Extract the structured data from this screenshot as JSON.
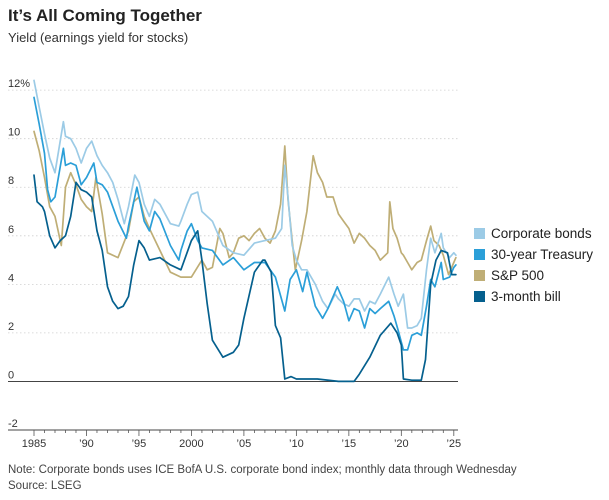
{
  "chart_data": {
    "type": "line",
    "title": "It’s All Coming Together",
    "subtitle": "Yield (earnings yield for stocks)",
    "xlabel": "",
    "ylabel": "",
    "xlim": [
      1985,
      2025.4
    ],
    "ylim": [
      -2,
      12.5
    ],
    "y_ticks": [
      {
        "value": 12,
        "label": "12%"
      },
      {
        "value": 10,
        "label": "10"
      },
      {
        "value": 8,
        "label": "8"
      },
      {
        "value": 6,
        "label": "6"
      },
      {
        "value": 4,
        "label": "4"
      },
      {
        "value": 2,
        "label": "2"
      },
      {
        "value": 0,
        "label": "0"
      },
      {
        "value": -2,
        "label": "-2"
      }
    ],
    "x_ticks": [
      {
        "value": 1985,
        "label": "1985"
      },
      {
        "value": 1990,
        "label": "’90"
      },
      {
        "value": 1995,
        "label": "’95"
      },
      {
        "value": 2000,
        "label": "2000"
      },
      {
        "value": 2005,
        "label": "’05"
      },
      {
        "value": 2010,
        "label": "’10"
      },
      {
        "value": 2015,
        "label": "’15"
      },
      {
        "value": 2020,
        "label": "’20"
      },
      {
        "value": 2025,
        "label": "’25"
      }
    ],
    "legend_position": "right",
    "series": [
      {
        "name": "S&P 500",
        "color": "#bfae76",
        "points": [
          [
            1985,
            10.3
          ],
          [
            1985.5,
            9.5
          ],
          [
            1986,
            8.4
          ],
          [
            1986.5,
            7.2
          ],
          [
            1987,
            6.8
          ],
          [
            1987.6,
            5.6
          ],
          [
            1988,
            8.0
          ],
          [
            1988.5,
            8.6
          ],
          [
            1989,
            8.1
          ],
          [
            1989.5,
            7.5
          ],
          [
            1990,
            7.2
          ],
          [
            1990.5,
            7.0
          ],
          [
            1990.9,
            8.4
          ],
          [
            1991.5,
            6.9
          ],
          [
            1992,
            5.3
          ],
          [
            1993,
            5.1
          ],
          [
            1994,
            6.2
          ],
          [
            1994.5,
            7.4
          ],
          [
            1995,
            7.6
          ],
          [
            1995.5,
            6.8
          ],
          [
            1996,
            6.3
          ],
          [
            1997,
            5.4
          ],
          [
            1998,
            4.5
          ],
          [
            1999,
            4.3
          ],
          [
            2000,
            4.3
          ],
          [
            2001,
            5.0
          ],
          [
            2001.5,
            4.6
          ],
          [
            2002,
            4.7
          ],
          [
            2002.7,
            6.3
          ],
          [
            2003,
            6.1
          ],
          [
            2003.6,
            5.1
          ],
          [
            2004,
            5.3
          ],
          [
            2004.5,
            5.9
          ],
          [
            2005,
            6.0
          ],
          [
            2005.5,
            5.8
          ],
          [
            2006,
            6.1
          ],
          [
            2006.5,
            6.3
          ],
          [
            2007,
            5.9
          ],
          [
            2007.5,
            5.7
          ],
          [
            2008,
            6.2
          ],
          [
            2008.5,
            7.3
          ],
          [
            2008.9,
            9.7
          ],
          [
            2009.2,
            7.5
          ],
          [
            2009.6,
            5.8
          ],
          [
            2009.9,
            4.6
          ],
          [
            2010.5,
            5.8
          ],
          [
            2011,
            7.0
          ],
          [
            2011.6,
            9.3
          ],
          [
            2012,
            8.6
          ],
          [
            2012.5,
            8.2
          ],
          [
            2012.9,
            7.6
          ],
          [
            2013.5,
            7.6
          ],
          [
            2014,
            6.9
          ],
          [
            2014.5,
            6.6
          ],
          [
            2015,
            6.3
          ],
          [
            2015.5,
            5.7
          ],
          [
            2016,
            6.1
          ],
          [
            2016.5,
            5.9
          ],
          [
            2017,
            5.6
          ],
          [
            2017.5,
            5.4
          ],
          [
            2018,
            5.0
          ],
          [
            2018.7,
            5.3
          ],
          [
            2018.9,
            7.4
          ],
          [
            2019.2,
            6.3
          ],
          [
            2019.6,
            5.9
          ],
          [
            2020,
            5.3
          ],
          [
            2020.2,
            5.2
          ],
          [
            2020.6,
            4.9
          ],
          [
            2021,
            4.6
          ],
          [
            2021.5,
            4.9
          ],
          [
            2021.9,
            5.0
          ],
          [
            2022.4,
            5.8
          ],
          [
            2022.8,
            6.4
          ],
          [
            2023.1,
            5.8
          ],
          [
            2023.6,
            5.6
          ],
          [
            2024,
            5.2
          ],
          [
            2024.5,
            4.4
          ],
          [
            2025,
            4.9
          ],
          [
            2025.2,
            5.1
          ]
        ]
      },
      {
        "name": "Corporate bonds",
        "color": "#9ccbe6",
        "points": [
          [
            1985,
            12.4
          ],
          [
            1985.5,
            11.3
          ],
          [
            1986,
            10.2
          ],
          [
            1986.5,
            9.2
          ],
          [
            1987,
            8.6
          ],
          [
            1987.8,
            10.7
          ],
          [
            1988,
            10.1
          ],
          [
            1988.5,
            10.0
          ],
          [
            1989,
            9.6
          ],
          [
            1989.5,
            9.0
          ],
          [
            1990,
            9.6
          ],
          [
            1990.5,
            9.9
          ],
          [
            1991,
            9.3
          ],
          [
            1991.5,
            8.9
          ],
          [
            1992,
            8.6
          ],
          [
            1992.5,
            8.2
          ],
          [
            1993,
            7.5
          ],
          [
            1993.6,
            6.5
          ],
          [
            1994,
            7.2
          ],
          [
            1994.6,
            8.5
          ],
          [
            1995,
            8.2
          ],
          [
            1995.5,
            7.3
          ],
          [
            1996,
            6.8
          ],
          [
            1996.5,
            7.5
          ],
          [
            1997,
            7.3
          ],
          [
            1998,
            6.5
          ],
          [
            1998.8,
            6.4
          ],
          [
            1999,
            6.6
          ],
          [
            1999.6,
            7.3
          ],
          [
            2000,
            7.7
          ],
          [
            2000.6,
            7.8
          ],
          [
            2001,
            7.0
          ],
          [
            2002,
            6.6
          ],
          [
            2003,
            5.6
          ],
          [
            2004,
            5.3
          ],
          [
            2005,
            5.2
          ],
          [
            2006,
            5.7
          ],
          [
            2007,
            5.8
          ],
          [
            2008,
            5.9
          ],
          [
            2008.6,
            6.3
          ],
          [
            2008.9,
            8.9
          ],
          [
            2009.2,
            7.6
          ],
          [
            2009.6,
            5.6
          ],
          [
            2010,
            5.0
          ],
          [
            2010.5,
            4.6
          ],
          [
            2011,
            4.6
          ],
          [
            2011.8,
            4.0
          ],
          [
            2012.5,
            3.3
          ],
          [
            2013,
            3.0
          ],
          [
            2013.7,
            3.6
          ],
          [
            2014,
            3.4
          ],
          [
            2014.5,
            3.2
          ],
          [
            2015,
            3.1
          ],
          [
            2015.5,
            3.4
          ],
          [
            2016,
            3.4
          ],
          [
            2016.5,
            2.9
          ],
          [
            2017,
            3.3
          ],
          [
            2017.5,
            3.2
          ],
          [
            2018,
            3.6
          ],
          [
            2018.8,
            4.3
          ],
          [
            2019.3,
            3.6
          ],
          [
            2019.7,
            3.1
          ],
          [
            2020.2,
            3.6
          ],
          [
            2020.6,
            2.2
          ],
          [
            2021,
            2.2
          ],
          [
            2021.5,
            2.3
          ],
          [
            2021.9,
            2.6
          ],
          [
            2022.4,
            4.6
          ],
          [
            2022.8,
            5.9
          ],
          [
            2023.2,
            5.3
          ],
          [
            2023.8,
            6.1
          ],
          [
            2024,
            5.5
          ],
          [
            2024.6,
            5.1
          ],
          [
            2025,
            5.3
          ],
          [
            2025.2,
            5.2
          ]
        ]
      },
      {
        "name": "30-year Treasury",
        "color": "#2b9fd8",
        "points": [
          [
            1985,
            11.7
          ],
          [
            1985.5,
            10.6
          ],
          [
            1986,
            9.4
          ],
          [
            1986.3,
            7.9
          ],
          [
            1986.6,
            7.4
          ],
          [
            1987,
            7.6
          ],
          [
            1987.8,
            9.6
          ],
          [
            1988,
            8.9
          ],
          [
            1988.5,
            9.0
          ],
          [
            1989,
            8.9
          ],
          [
            1989.5,
            8.1
          ],
          [
            1990,
            8.4
          ],
          [
            1990.7,
            9.0
          ],
          [
            1991,
            8.2
          ],
          [
            1991.5,
            8.1
          ],
          [
            1992,
            7.8
          ],
          [
            1993,
            6.6
          ],
          [
            1993.8,
            5.9
          ],
          [
            1994,
            6.4
          ],
          [
            1994.8,
            8.0
          ],
          [
            1995,
            7.6
          ],
          [
            1995.5,
            6.6
          ],
          [
            1996,
            6.2
          ],
          [
            1996.5,
            7.0
          ],
          [
            1997,
            6.7
          ],
          [
            1998,
            5.6
          ],
          [
            1998.8,
            5.0
          ],
          [
            1999,
            5.4
          ],
          [
            1999.6,
            6.2
          ],
          [
            2000,
            6.5
          ],
          [
            2000.6,
            5.8
          ],
          [
            2001,
            5.5
          ],
          [
            2002,
            5.4
          ],
          [
            2003,
            4.8
          ],
          [
            2004,
            5.1
          ],
          [
            2005,
            4.6
          ],
          [
            2006,
            4.9
          ],
          [
            2007,
            4.9
          ],
          [
            2008,
            4.3
          ],
          [
            2008.9,
            2.9
          ],
          [
            2009.4,
            4.2
          ],
          [
            2010,
            4.6
          ],
          [
            2010.6,
            3.7
          ],
          [
            2011,
            4.5
          ],
          [
            2011.8,
            3.1
          ],
          [
            2012.5,
            2.6
          ],
          [
            2013,
            3.0
          ],
          [
            2013.9,
            3.9
          ],
          [
            2014.5,
            3.3
          ],
          [
            2015,
            2.5
          ],
          [
            2015.5,
            3.0
          ],
          [
            2016,
            2.9
          ],
          [
            2016.5,
            2.2
          ],
          [
            2017,
            3.0
          ],
          [
            2017.5,
            2.8
          ],
          [
            2018,
            3.0
          ],
          [
            2018.8,
            3.3
          ],
          [
            2019.3,
            2.7
          ],
          [
            2019.7,
            2.1
          ],
          [
            2020.2,
            1.3
          ],
          [
            2020.6,
            1.3
          ],
          [
            2021,
            1.9
          ],
          [
            2021.5,
            2.0
          ],
          [
            2021.9,
            1.9
          ],
          [
            2022.4,
            3.1
          ],
          [
            2022.8,
            4.2
          ],
          [
            2023.2,
            3.9
          ],
          [
            2023.8,
            4.9
          ],
          [
            2024,
            4.2
          ],
          [
            2024.6,
            4.3
          ],
          [
            2025,
            4.7
          ],
          [
            2025.2,
            4.8
          ]
        ]
      },
      {
        "name": "3-month bill",
        "color": "#05608e",
        "points": [
          [
            1985,
            8.5
          ],
          [
            1985.3,
            7.4
          ],
          [
            1985.8,
            7.2
          ],
          [
            1986,
            7.0
          ],
          [
            1986.5,
            6.0
          ],
          [
            1987,
            5.5
          ],
          [
            1987.5,
            5.8
          ],
          [
            1988,
            6.0
          ],
          [
            1988.5,
            6.8
          ],
          [
            1989,
            8.2
          ],
          [
            1989.5,
            7.9
          ],
          [
            1990,
            7.8
          ],
          [
            1990.5,
            7.6
          ],
          [
            1991,
            6.2
          ],
          [
            1991.5,
            5.4
          ],
          [
            1992,
            3.9
          ],
          [
            1992.5,
            3.3
          ],
          [
            1993,
            3.0
          ],
          [
            1993.5,
            3.1
          ],
          [
            1994,
            3.5
          ],
          [
            1994.5,
            4.8
          ],
          [
            1995,
            5.8
          ],
          [
            1995.5,
            5.5
          ],
          [
            1996,
            5.0
          ],
          [
            1997,
            5.1
          ],
          [
            1998,
            4.8
          ],
          [
            1999,
            4.6
          ],
          [
            2000,
            5.8
          ],
          [
            2000.6,
            6.2
          ],
          [
            2001,
            5.0
          ],
          [
            2001.5,
            3.2
          ],
          [
            2002,
            1.7
          ],
          [
            2003,
            1.0
          ],
          [
            2004,
            1.2
          ],
          [
            2004.5,
            1.5
          ],
          [
            2005,
            2.6
          ],
          [
            2006,
            4.5
          ],
          [
            2006.8,
            5.0
          ],
          [
            2007,
            5.0
          ],
          [
            2007.6,
            4.5
          ],
          [
            2008,
            2.3
          ],
          [
            2008.5,
            1.8
          ],
          [
            2008.9,
            0.1
          ],
          [
            2009.5,
            0.2
          ],
          [
            2010,
            0.1
          ],
          [
            2012,
            0.1
          ],
          [
            2014,
            0.0
          ],
          [
            2015.5,
            0.0
          ],
          [
            2016,
            0.3
          ],
          [
            2017,
            1.0
          ],
          [
            2018,
            1.9
          ],
          [
            2019,
            2.4
          ],
          [
            2019.6,
            2.0
          ],
          [
            2020,
            1.5
          ],
          [
            2020.2,
            0.1
          ],
          [
            2021,
            0.05
          ],
          [
            2021.9,
            0.05
          ],
          [
            2022.3,
            0.9
          ],
          [
            2022.8,
            4.0
          ],
          [
            2023.3,
            5.0
          ],
          [
            2023.8,
            5.4
          ],
          [
            2024.4,
            5.3
          ],
          [
            2024.8,
            4.4
          ],
          [
            2025.2,
            4.4
          ]
        ]
      }
    ]
  },
  "legend": [
    {
      "label": "Corporate bonds",
      "color": "#9ccbe6"
    },
    {
      "label": "30-year Treasury",
      "color": "#2b9fd8"
    },
    {
      "label": "S&P 500",
      "color": "#bfae76"
    },
    {
      "label": "3-month bill",
      "color": "#05608e"
    }
  ],
  "note": "Note: Corporate bonds uses ICE BofA U.S. corporate bond index; monthly data through Wednesday",
  "source": "Source: LSEG"
}
